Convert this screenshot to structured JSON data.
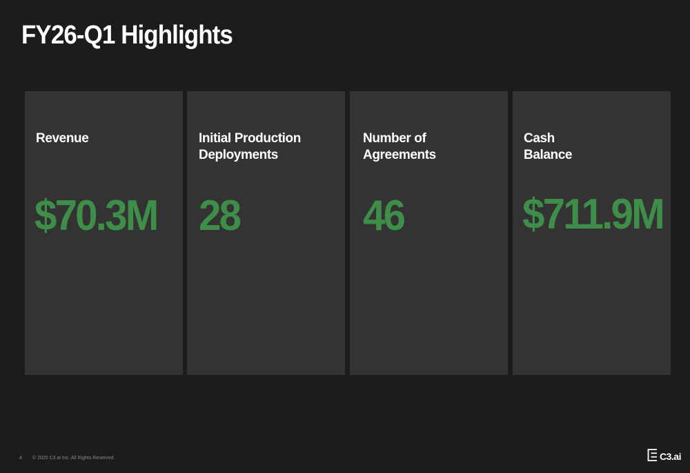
{
  "slide": {
    "title": "FY26-Q1 Highlights"
  },
  "cards": [
    {
      "label_line1": "Revenue",
      "label_line2": "",
      "value": "$70.3M"
    },
    {
      "label_line1": "Initial Production",
      "label_line2": "Deployments",
      "value": "28"
    },
    {
      "label_line1": "Number of",
      "label_line2": "Agreements",
      "value": "46"
    },
    {
      "label_line1": "Cash",
      "label_line2": "Balance",
      "value": "$711.9M"
    }
  ],
  "footer": {
    "page_number": "4",
    "copyright": "© 2025 C3.ai Inc. All Rights Reserved.",
    "logo_text": "C3.ai"
  },
  "colors": {
    "background": "#1c1c1c",
    "card": "#333333",
    "accent_green": "#3e8e4a"
  }
}
